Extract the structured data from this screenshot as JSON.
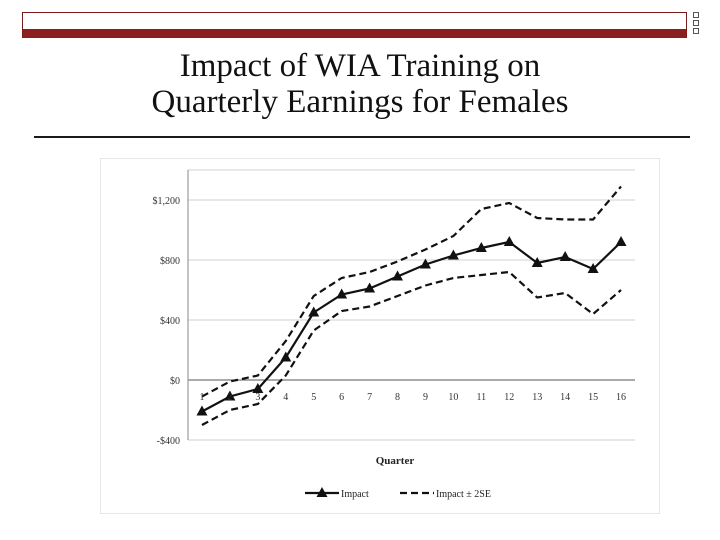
{
  "slide": {
    "title_line1": "Impact of WIA Training on",
    "title_line2": "Quarterly Earnings for Females"
  },
  "chart_data": {
    "type": "line",
    "title": "",
    "xlabel": "Quarter",
    "ylabel": "",
    "x": [
      1,
      2,
      3,
      4,
      5,
      6,
      7,
      8,
      9,
      10,
      11,
      12,
      13,
      14,
      15,
      16
    ],
    "ylim": [
      -400,
      1400
    ],
    "yticks": [
      -400,
      0,
      400,
      800,
      1200
    ],
    "ytick_labels": [
      "-$400",
      "$0",
      "$400",
      "$800",
      "$1,200"
    ],
    "grid": true,
    "legend": "bottom",
    "series": [
      {
        "name": "Impact",
        "style": "solid-triangle",
        "values": [
          -210,
          -110,
          -60,
          150,
          450,
          570,
          610,
          690,
          770,
          830,
          880,
          920,
          780,
          820,
          740,
          920
        ]
      },
      {
        "name": "Impact ± 2SE",
        "style": "dashed",
        "band": "upper",
        "values": [
          -110,
          -10,
          30,
          260,
          560,
          680,
          720,
          790,
          870,
          960,
          1140,
          1180,
          1080,
          1070,
          1070,
          1290
        ]
      },
      {
        "name": "",
        "style": "dashed",
        "band": "lower",
        "values": [
          -300,
          -200,
          -160,
          30,
          330,
          460,
          490,
          560,
          630,
          680,
          700,
          720,
          550,
          580,
          440,
          600
        ]
      }
    ]
  }
}
